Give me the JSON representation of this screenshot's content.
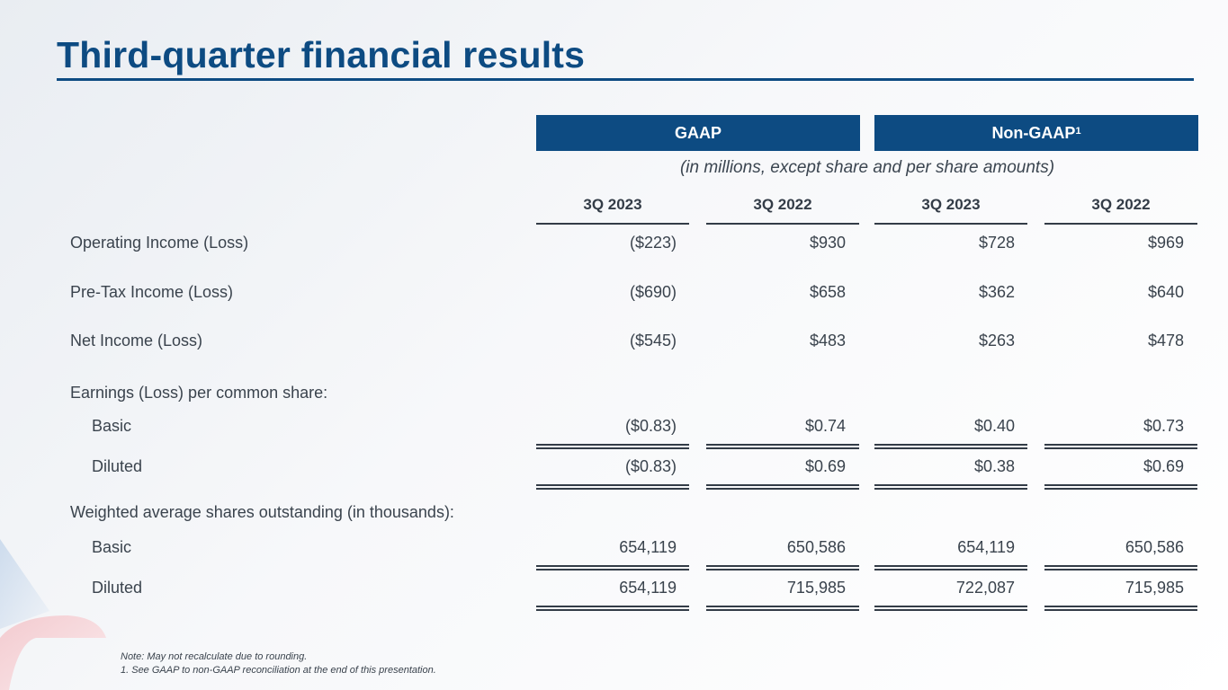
{
  "title": "Third-quarter financial results",
  "groups": {
    "gaap": "GAAP",
    "nongaap": "Non-GAAP",
    "nongaap_sup": "1"
  },
  "units_note": "(in millions, except share and per share amounts)",
  "columns": [
    "3Q 2023",
    "3Q 2022",
    "3Q 2023",
    "3Q 2022"
  ],
  "rows": [
    {
      "label": "Operating Income (Loss)",
      "values": [
        "($223)",
        "$930",
        "$728",
        "$969"
      ]
    },
    {
      "label": "Pre-Tax Income (Loss)",
      "values": [
        "($690)",
        "$658",
        "$362",
        "$640"
      ]
    },
    {
      "label": "Net Income (Loss)",
      "values": [
        "($545)",
        "$483",
        "$263",
        "$478"
      ]
    }
  ],
  "eps": {
    "heading": "Earnings (Loss) per common share:",
    "basic": {
      "label": "Basic",
      "values": [
        "($0.83)",
        "$0.74",
        "$0.40",
        "$0.73"
      ]
    },
    "diluted": {
      "label": "Diluted",
      "values": [
        "($0.83)",
        "$0.69",
        "$0.38",
        "$0.69"
      ]
    }
  },
  "shares": {
    "heading": "Weighted average shares outstanding (in thousands):",
    "basic": {
      "label": "Basic",
      "values": [
        "654,119",
        "650,586",
        "654,119",
        "650,586"
      ]
    },
    "diluted": {
      "label": "Diluted",
      "values": [
        "654,119",
        "715,985",
        "722,087",
        "715,985"
      ]
    }
  },
  "footnotes": {
    "note": "Note:  May not recalculate due to rounding.",
    "one": "1. See GAAP to non-GAAP reconciliation at the end of this presentation."
  },
  "colors": {
    "brand_blue": "#0d4b82",
    "deco_red": "#d22630",
    "deco_blue": "#8fb3d9"
  }
}
